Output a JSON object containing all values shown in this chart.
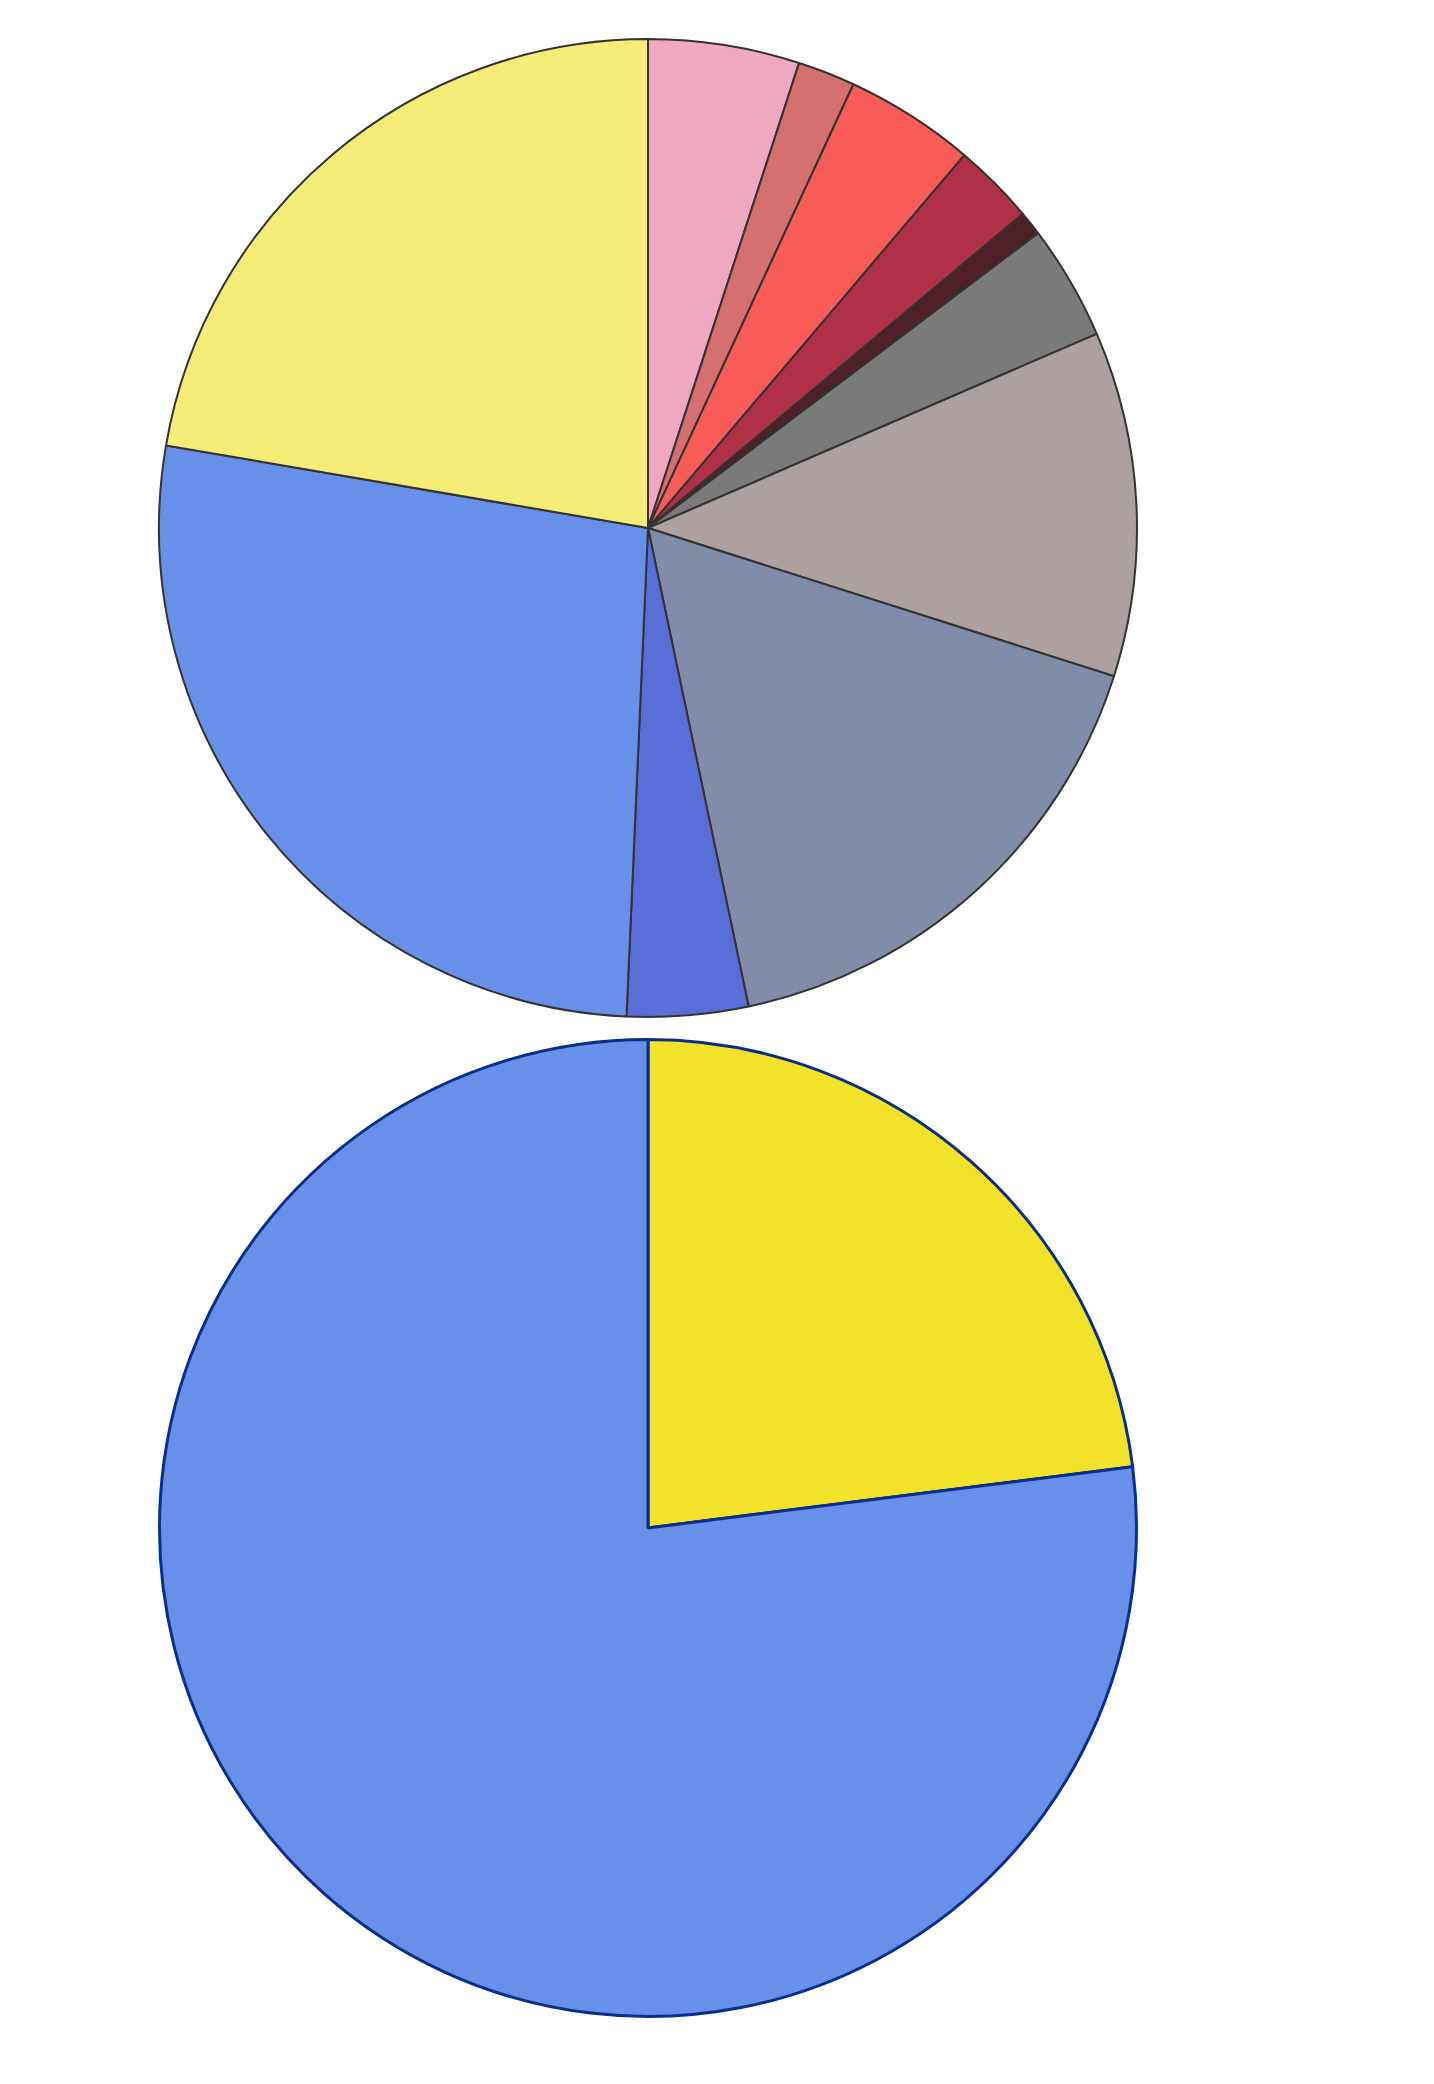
{
  "chart_data": [
    {
      "type": "pie",
      "categories": [
        null,
        null,
        null,
        null,
        null,
        null,
        null,
        null,
        null,
        null,
        null
      ],
      "values": [
        5.0,
        1.9,
        4.3,
        2.7,
        0.8,
        3.8,
        11.4,
        16.8,
        4.0,
        27.0,
        22.3
      ],
      "colors": [
        "#f0a8c0",
        "#d47070",
        "#f85c58",
        "#b03048",
        "#502028",
        "#7a7a7a",
        "#aca0a0",
        "#808ca8",
        "#5a6ed8",
        "#6890e8",
        "#f5ec78"
      ],
      "legend": false
    },
    {
      "type": "pie",
      "categories": [
        null,
        null
      ],
      "values": [
        23,
        77
      ],
      "colors": [
        "#f2e22a",
        "#6890e8"
      ],
      "legend": false
    }
  ]
}
